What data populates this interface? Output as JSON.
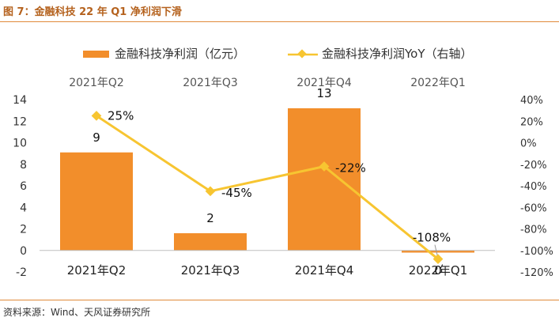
{
  "figure": {
    "title": "图 7：金融科技 22 年 Q1 净利润下滑",
    "source": "资料来源：Wind、天风证券研究所"
  },
  "chart_data": {
    "type": "bar",
    "categories": [
      "2021年Q2",
      "2021年Q3",
      "2021年Q4",
      "2022年Q1"
    ],
    "series": [
      {
        "name": "金融科技净利润（亿元）",
        "type": "bar",
        "axis": "left",
        "values": [
          9.1,
          1.6,
          13.2,
          -0.2
        ],
        "labels": [
          "9",
          "2",
          "13",
          "0"
        ]
      },
      {
        "name": "金融科技净利润YoY（右轴）",
        "type": "line",
        "axis": "right",
        "values": [
          25,
          -45,
          -22,
          -108
        ],
        "labels": [
          "25%",
          "-45%",
          "-22%",
          "-108%"
        ]
      }
    ],
    "y_left": {
      "min": -2,
      "max": 14,
      "ticks": [
        -2,
        0,
        2,
        4,
        6,
        8,
        10,
        12,
        14
      ]
    },
    "y_right": {
      "min": -120,
      "max": 40,
      "ticks": [
        -120,
        -100,
        -80,
        -60,
        -40,
        -20,
        0,
        20,
        40
      ],
      "tick_labels": [
        "-120%",
        "-100%",
        "-80%",
        "-60%",
        "-40%",
        "-20%",
        "0%",
        "20%",
        "40%"
      ]
    },
    "legend_position": "top",
    "grid": false,
    "colors": {
      "bar": "#f28e2b",
      "line": "#f7c531",
      "axis": "#bfbfbf",
      "rule": "#e08a3a"
    }
  }
}
